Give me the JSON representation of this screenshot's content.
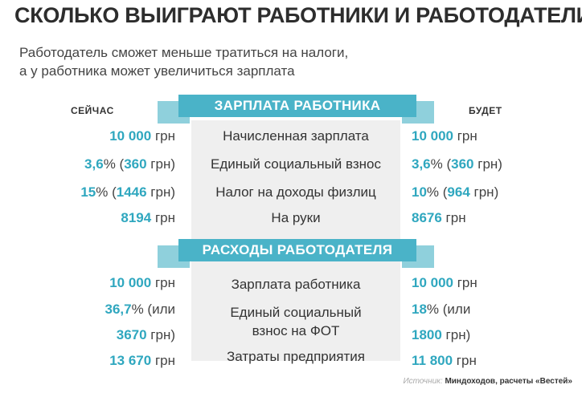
{
  "title": "СКОЛЬКО ВЫИГРАЮТ РАБОТНИКИ И РАБОТОДАТЕЛИ",
  "subtitle_line1": "Работодатель сможет меньше тратиться на налоги,",
  "subtitle_line2": "а у работника может увеличиться зарплата",
  "col_now": "СЕЙЧАС",
  "col_future": "БУДЕТ",
  "colors": {
    "accent": "#2fa7bf",
    "ribbon": "#4ab3c8",
    "ribbon_dark": "#378fa1",
    "panel": "#efefef"
  },
  "section1": {
    "title": "ЗАРПЛАТА РАБОТНИКА",
    "rows": [
      {
        "label": "Начисленная зарплата",
        "now_num": "10 000",
        "now_unit": " грн",
        "fut_num": "10 000",
        "fut_unit": " грн"
      },
      {
        "label": "Единый социальный взнос",
        "now_num": "3,6",
        "now_pct": "% (",
        "now_num2": "360",
        "now_unit": " грн)",
        "fut_num": "3,6",
        "fut_pct": "% (",
        "fut_num2": "360",
        "fut_unit": " грн)"
      },
      {
        "label": "Налог на доходы физлиц",
        "now_num": "15",
        "now_pct": "% (",
        "now_num2": "1446",
        "now_unit": " грн)",
        "fut_num": "10",
        "fut_pct": "% (",
        "fut_num2": "964",
        "fut_unit": " грн)"
      },
      {
        "label": "На руки",
        "now_num": "8194",
        "now_unit": " грн",
        "fut_num": "8676",
        "fut_unit": " грн"
      }
    ]
  },
  "section2": {
    "title": "РАСХОДЫ РАБОТОДАТЕЛЯ",
    "rows": [
      {
        "label": "Зарплата работника",
        "now_num": "10 000",
        "now_unit": " грн",
        "fut_num": "10 000",
        "fut_unit": " грн"
      },
      {
        "label_line1": "Единый социальный",
        "label_line2": "взнос на ФОТ",
        "now_num": "36,7",
        "now_pct": "% (или",
        "now_num2": "3670",
        "now_unit": " грн)",
        "fut_num": "18",
        "fut_pct": "% (или",
        "fut_num2": "1800",
        "fut_unit": " грн)"
      },
      {
        "label": "Затраты предприятия",
        "now_num": "13 670",
        "now_unit": " грн",
        "fut_num": "11 800",
        "fut_unit": " грн"
      }
    ]
  },
  "source_label": "Источник:",
  "source_text": "Миндоходов, расчеты «Вестей»"
}
